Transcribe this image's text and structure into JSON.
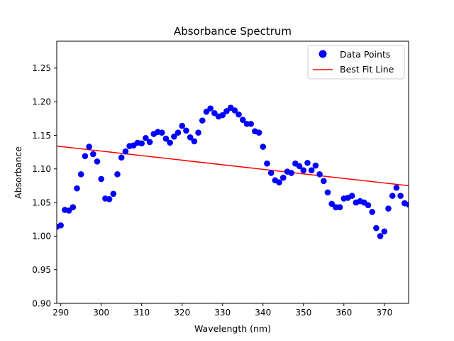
{
  "chart_data": {
    "type": "scatter",
    "title": "Absorbance Spectrum",
    "xlabel": "Wavelength (nm)",
    "ylabel": "Absorbance",
    "xlim": [
      289,
      376
    ],
    "ylim": [
      0.9,
      1.29
    ],
    "xticks": [
      290,
      300,
      310,
      320,
      330,
      340,
      350,
      360,
      370
    ],
    "yticks": [
      0.9,
      0.95,
      1.0,
      1.05,
      1.1,
      1.15,
      1.2,
      1.25
    ],
    "grid": false,
    "legend_position": "top-right",
    "legend": [
      {
        "label": "Data Points",
        "marker": "circle",
        "color": "#0000ff"
      },
      {
        "label": "Best Fit Line",
        "marker": "line",
        "color": "#ff0000"
      }
    ],
    "series": [
      {
        "name": "Data Points",
        "kind": "scatter",
        "color": "#0000ff",
        "x": [
          289,
          290,
          291,
          292,
          293,
          294,
          295,
          296,
          297,
          298,
          299,
          300,
          301,
          302,
          303,
          304,
          305,
          306,
          307,
          308,
          309,
          310,
          311,
          312,
          313,
          314,
          315,
          316,
          317,
          318,
          319,
          320,
          321,
          322,
          323,
          324,
          325,
          326,
          327,
          328,
          329,
          330,
          331,
          332,
          333,
          334,
          335,
          336,
          337,
          338,
          339,
          340,
          341,
          342,
          343,
          344,
          345,
          346,
          347,
          348,
          349,
          350,
          351,
          352,
          353,
          354,
          355,
          356,
          357,
          358,
          359,
          360,
          361,
          362,
          363,
          364,
          365,
          366,
          367,
          368,
          369,
          370,
          371,
          372,
          373,
          374,
          375,
          376
        ],
        "y": [
          1.014,
          1.016,
          1.039,
          1.038,
          1.043,
          1.071,
          1.092,
          1.119,
          1.133,
          1.122,
          1.111,
          1.085,
          1.056,
          1.055,
          1.063,
          1.092,
          1.117,
          1.126,
          1.134,
          1.135,
          1.139,
          1.138,
          1.146,
          1.14,
          1.152,
          1.155,
          1.154,
          1.145,
          1.139,
          1.148,
          1.154,
          1.164,
          1.157,
          1.147,
          1.141,
          1.154,
          1.172,
          1.185,
          1.19,
          1.183,
          1.178,
          1.18,
          1.186,
          1.191,
          1.187,
          1.181,
          1.173,
          1.167,
          1.167,
          1.156,
          1.154,
          1.133,
          1.108,
          1.094,
          1.083,
          1.08,
          1.087,
          1.096,
          1.094,
          1.108,
          1.104,
          1.098,
          1.109,
          1.098,
          1.105,
          1.092,
          1.082,
          1.065,
          1.048,
          1.043,
          1.043,
          1.056,
          1.057,
          1.06,
          1.05,
          1.052,
          1.05,
          1.046,
          1.036,
          1.012,
          1.0,
          1.007,
          1.041,
          1.06,
          1.072,
          1.06,
          1.049,
          1.047
        ]
      },
      {
        "name": "Best Fit Line",
        "kind": "line",
        "color": "#ff0000",
        "x": [
          289,
          376
        ],
        "y": [
          1.134,
          1.075
        ]
      }
    ]
  }
}
